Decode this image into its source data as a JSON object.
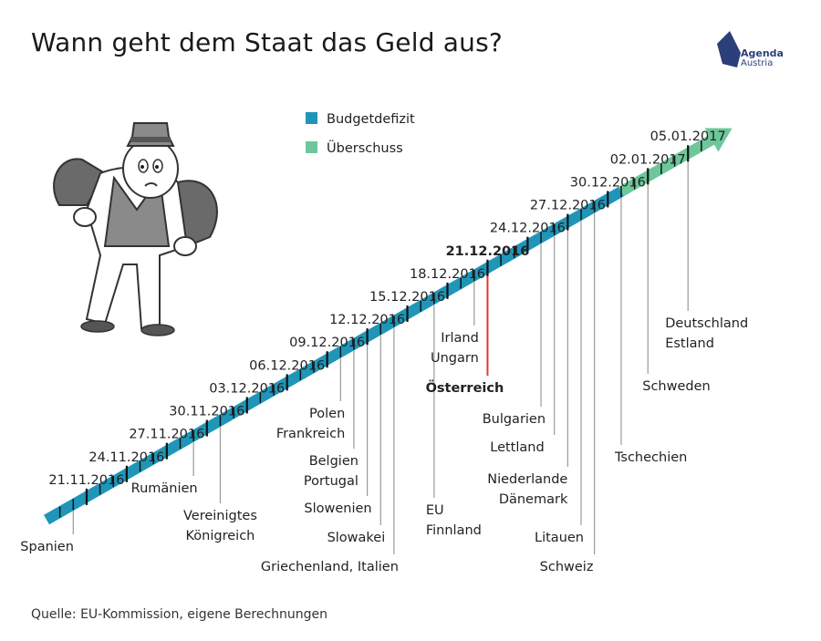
{
  "title": "Wann geht dem Staat das Geld aus?",
  "source": "Quelle: EU-Kommission, eigene Berechnungen",
  "logo": {
    "name": "agenda-austria-logo",
    "line1": "Agenda",
    "line2": "Austria",
    "color": "#2b3f7a"
  },
  "illustration": "worried-man-empty-pockets-icon",
  "colors": {
    "deficit": "#1f96b8",
    "surplus": "#6dc79a",
    "highlight": "#e03a2f",
    "tick": "#111111",
    "leader": "#999999"
  },
  "chart_data": {
    "type": "timeline",
    "title": "Wann geht dem Staat das Geld aus?",
    "legend": [
      {
        "label": "Budgetdefizit",
        "color": "#1f96b8"
      },
      {
        "label": "Überschuss",
        "color": "#6dc79a"
      }
    ],
    "legend_position": "top-center",
    "x_start": "2016-11-18",
    "surplus_from": "2016-12-31",
    "date_labels": [
      {
        "date": "2016-11-21",
        "label": "21.11.2016"
      },
      {
        "date": "2016-11-24",
        "label": "24.11.2016"
      },
      {
        "date": "2016-11-27",
        "label": "27.11.2016"
      },
      {
        "date": "2016-11-30",
        "label": "30.11.2016"
      },
      {
        "date": "2016-12-03",
        "label": "03.12.2016"
      },
      {
        "date": "2016-12-06",
        "label": "06.12.2016"
      },
      {
        "date": "2016-12-09",
        "label": "09.12.2016"
      },
      {
        "date": "2016-12-12",
        "label": "12.12.2016"
      },
      {
        "date": "2016-12-15",
        "label": "15.12.2016"
      },
      {
        "date": "2016-12-18",
        "label": "18.12.2016"
      },
      {
        "date": "2016-12-21",
        "label": "21.12.2016",
        "bold": true
      },
      {
        "date": "2016-12-24",
        "label": "24.12.2016"
      },
      {
        "date": "2016-12-27",
        "label": "27.12.2016"
      },
      {
        "date": "2016-12-30",
        "label": "30.12.2016"
      },
      {
        "date": "2017-01-02",
        "label": "02.01.2017"
      },
      {
        "date": "2017-01-05",
        "label": "05.01.2017"
      }
    ],
    "countries": [
      {
        "date": "2016-11-20",
        "lines": [
          "Spanien"
        ]
      },
      {
        "date": "2016-11-29",
        "lines": [
          "Rumänien"
        ]
      },
      {
        "date": "2016-12-01",
        "lines": [
          "Vereinigtes",
          "Königreich"
        ]
      },
      {
        "date": "2016-12-10",
        "lines": [
          "Polen",
          "Frankreich"
        ]
      },
      {
        "date": "2016-12-11",
        "lines": [
          "Belgien",
          "Portugal"
        ]
      },
      {
        "date": "2016-12-12",
        "lines": [
          "Slowenien"
        ]
      },
      {
        "date": "2016-12-13",
        "lines": [
          "Slowakei"
        ]
      },
      {
        "date": "2016-12-14",
        "lines": [
          "Griechenland, Italien"
        ]
      },
      {
        "date": "2016-12-17",
        "lines": [
          "EU",
          "Finnland"
        ]
      },
      {
        "date": "2016-12-20",
        "lines": [
          "Irland",
          "Ungarn"
        ]
      },
      {
        "date": "2016-12-21",
        "lines": [
          "Österreich"
        ],
        "highlight": true
      },
      {
        "date": "2016-12-25",
        "lines": [
          "Bulgarien"
        ]
      },
      {
        "date": "2016-12-26",
        "lines": [
          "Lettland"
        ]
      },
      {
        "date": "2016-12-27",
        "lines": [
          "Niederlande",
          "Dänemark"
        ]
      },
      {
        "date": "2016-12-28",
        "lines": [
          "Litauen"
        ]
      },
      {
        "date": "2016-12-29",
        "lines": [
          "Schweiz"
        ]
      },
      {
        "date": "2016-12-31",
        "lines": [
          "Tschechien"
        ]
      },
      {
        "date": "2017-01-02",
        "lines": [
          "Schweden"
        ]
      },
      {
        "date": "2017-01-05",
        "lines": [
          "Deutschland",
          "Estland"
        ]
      }
    ]
  }
}
